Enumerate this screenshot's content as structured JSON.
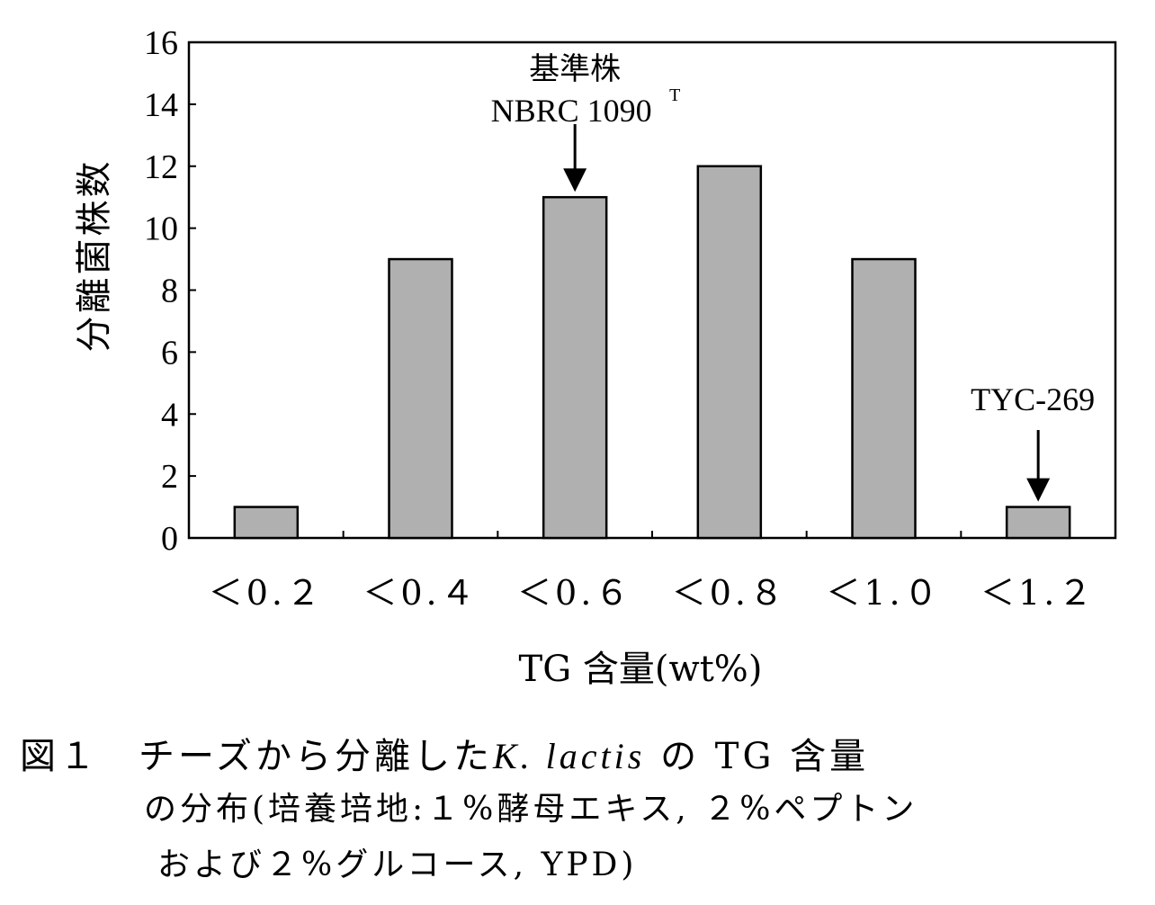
{
  "chart_data": {
    "type": "bar",
    "categories": [
      "<0.2",
      "<0.4",
      "<0.6",
      "<0.8",
      "<1.0",
      "<1.2"
    ],
    "category_labels": [
      "＜0.２",
      "＜0.４",
      "＜0.６",
      "＜0.８",
      "＜1.０",
      "＜1.２"
    ],
    "values": [
      1,
      9,
      11,
      12,
      9,
      1
    ],
    "xlabel": "TG 含量(wt%)",
    "ylabel": "分離菌株数",
    "ylim": [
      0,
      16
    ],
    "yticks": [
      0,
      2,
      4,
      6,
      8,
      10,
      12,
      14,
      16
    ],
    "grid": false,
    "bar_color": "#b0b0b0",
    "annotations": [
      {
        "category_index": 2,
        "line1": "基準株",
        "line2": "NBRC 1090",
        "superscript": "T"
      },
      {
        "category_index": 5,
        "line1": "TYC-269"
      }
    ]
  },
  "caption": {
    "line1_prefix": "図１　チーズから分離した",
    "line1_italic": "K. lactis",
    "line1_suffix": "の TG 含量",
    "line2": "の分布(培養培地:１%酵母エキス, ２%ペプトン",
    "line3": "および２%グルコース, YPD)"
  }
}
